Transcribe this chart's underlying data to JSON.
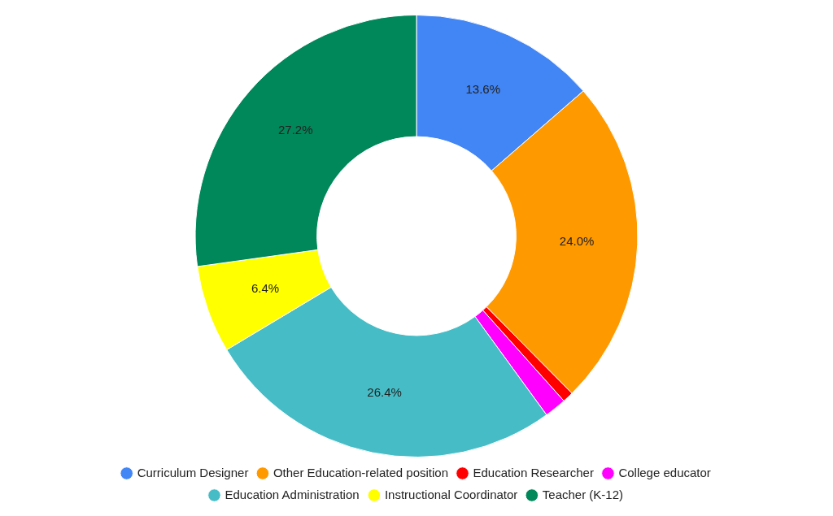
{
  "chart_data": {
    "type": "donut",
    "categories": [
      "Curriculum Designer",
      "Other Education-related position",
      "Education Researcher",
      "College educator",
      "Education Administration",
      "Instructional Coordinator",
      "Teacher (K-12)"
    ],
    "values": [
      13.6,
      24.0,
      0.8,
      1.6,
      26.4,
      6.4,
      27.2
    ],
    "colors": [
      "#4285f4",
      "#ff9900",
      "#ff0000",
      "#ff00ff",
      "#46bdc6",
      "#ffff00",
      "#00875a"
    ],
    "value_labels": [
      "13.6%",
      "24.0%",
      null,
      null,
      "26.4%",
      "6.4%",
      "27.2%"
    ],
    "legend": "bottom"
  }
}
